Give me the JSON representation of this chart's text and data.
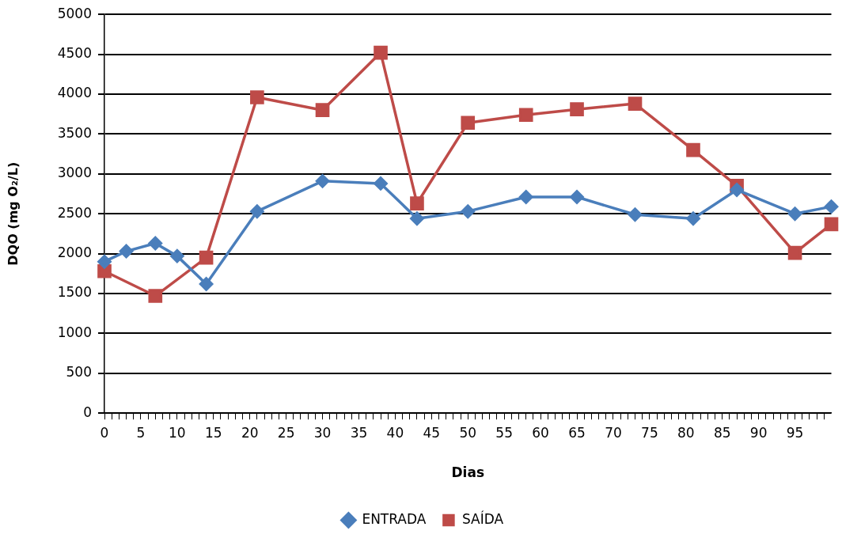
{
  "chart_data": {
    "type": "line",
    "xlabel": "Dias",
    "ylabel": "DQO (mg O₂/L)",
    "xlim": [
      0,
      100
    ],
    "xticks": [
      0,
      {
        "value": 1,
        "label": null
      },
      {
        "value": 2,
        "label": null
      },
      {
        "value": 3,
        "label": null
      },
      {
        "value": 4,
        "label": null
      },
      5,
      {
        "value": 6,
        "label": null
      },
      {
        "value": 7,
        "label": null
      },
      {
        "value": 8,
        "label": null
      },
      {
        "value": 9,
        "label": null
      },
      10,
      {
        "value": 11,
        "label": null
      },
      {
        "value": 12,
        "label": null
      },
      {
        "value": 13,
        "label": null
      },
      {
        "value": 14,
        "label": null
      },
      15,
      {
        "value": 16,
        "label": null
      },
      {
        "value": 17,
        "label": null
      },
      {
        "value": 18,
        "label": null
      },
      {
        "value": 19,
        "label": null
      },
      20,
      {
        "value": 21,
        "label": null
      },
      {
        "value": 22,
        "label": null
      },
      {
        "value": 23,
        "label": null
      },
      {
        "value": 24,
        "label": null
      },
      25,
      {
        "value": 26,
        "label": null
      },
      {
        "value": 27,
        "label": null
      },
      {
        "value": 28,
        "label": null
      },
      {
        "value": 29,
        "label": null
      },
      30,
      {
        "value": 31,
        "label": null
      },
      {
        "value": 32,
        "label": null
      },
      {
        "value": 33,
        "label": null
      },
      {
        "value": 34,
        "label": null
      },
      35,
      {
        "value": 36,
        "label": null
      },
      {
        "value": 37,
        "label": null
      },
      {
        "value": 38,
        "label": null
      },
      {
        "value": 39,
        "label": null
      },
      40,
      {
        "value": 41,
        "label": null
      },
      {
        "value": 42,
        "label": null
      },
      {
        "value": 43,
        "label": null
      },
      {
        "value": 44,
        "label": null
      },
      45,
      {
        "value": 46,
        "label": null
      },
      {
        "value": 47,
        "label": null
      },
      {
        "value": 48,
        "label": null
      },
      {
        "value": 49,
        "label": null
      },
      50,
      {
        "value": 51,
        "label": null
      },
      {
        "value": 52,
        "label": null
      },
      {
        "value": 53,
        "label": null
      },
      {
        "value": 54,
        "label": null
      },
      55,
      {
        "value": 56,
        "label": null
      },
      {
        "value": 57,
        "label": null
      },
      {
        "value": 58,
        "label": null
      },
      {
        "value": 59,
        "label": null
      },
      60,
      {
        "value": 61,
        "label": null
      },
      {
        "value": 62,
        "label": null
      },
      {
        "value": 63,
        "label": null
      },
      {
        "value": 64,
        "label": null
      },
      65,
      {
        "value": 66,
        "label": null
      },
      {
        "value": 67,
        "label": null
      },
      {
        "value": 68,
        "label": null
      },
      {
        "value": 69,
        "label": null
      },
      70,
      {
        "value": 71,
        "label": null
      },
      {
        "value": 72,
        "label": null
      },
      {
        "value": 73,
        "label": null
      },
      {
        "value": 74,
        "label": null
      },
      75,
      {
        "value": 76,
        "label": null
      },
      {
        "value": 77,
        "label": null
      },
      {
        "value": 78,
        "label": null
      },
      {
        "value": 79,
        "label": null
      },
      80,
      {
        "value": 81,
        "label": null
      },
      {
        "value": 82,
        "label": null
      },
      {
        "value": 83,
        "label": null
      },
      {
        "value": 84,
        "label": null
      },
      85,
      {
        "value": 86,
        "label": null
      },
      {
        "value": 87,
        "label": null
      },
      {
        "value": 88,
        "label": null
      },
      {
        "value": 89,
        "label": null
      },
      90,
      {
        "value": 91,
        "label": null
      },
      {
        "value": 92,
        "label": null
      },
      {
        "value": 93,
        "label": null
      },
      {
        "value": 94,
        "label": null
      },
      95,
      {
        "value": 96,
        "label": null
      },
      {
        "value": 97,
        "label": null
      },
      {
        "value": 98,
        "label": null
      },
      {
        "value": 99,
        "label": null
      }
    ],
    "ylim": [
      0,
      5000
    ],
    "yticks": [
      0,
      500,
      1000,
      1500,
      2000,
      2500,
      3000,
      3500,
      4000,
      4500,
      5000
    ],
    "grid": "y",
    "legend": "bottom",
    "line_style": "solid",
    "series": [
      {
        "name": "ENTRADA",
        "color": "#4a7ebb",
        "marker": "diamond",
        "x": [
          0,
          3,
          7,
          10,
          14,
          21,
          30,
          38,
          43,
          50,
          58,
          65,
          73,
          81,
          87,
          95,
          100
        ],
        "values": [
          1900,
          2030,
          2130,
          1970,
          1620,
          2530,
          2910,
          2880,
          2440,
          2530,
          2710,
          2710,
          2490,
          2440,
          2800,
          2500,
          2590
        ]
      },
      {
        "name": "SAÍDA",
        "color": "#be4b48",
        "marker": "square",
        "x": [
          0,
          7,
          14,
          21,
          30,
          38,
          43,
          50,
          58,
          65,
          73,
          81,
          87,
          95,
          100
        ],
        "values": [
          1780,
          1470,
          1950,
          3960,
          3800,
          4520,
          2630,
          3640,
          3740,
          3810,
          3880,
          3300,
          2850,
          2010,
          2370
        ]
      }
    ]
  }
}
